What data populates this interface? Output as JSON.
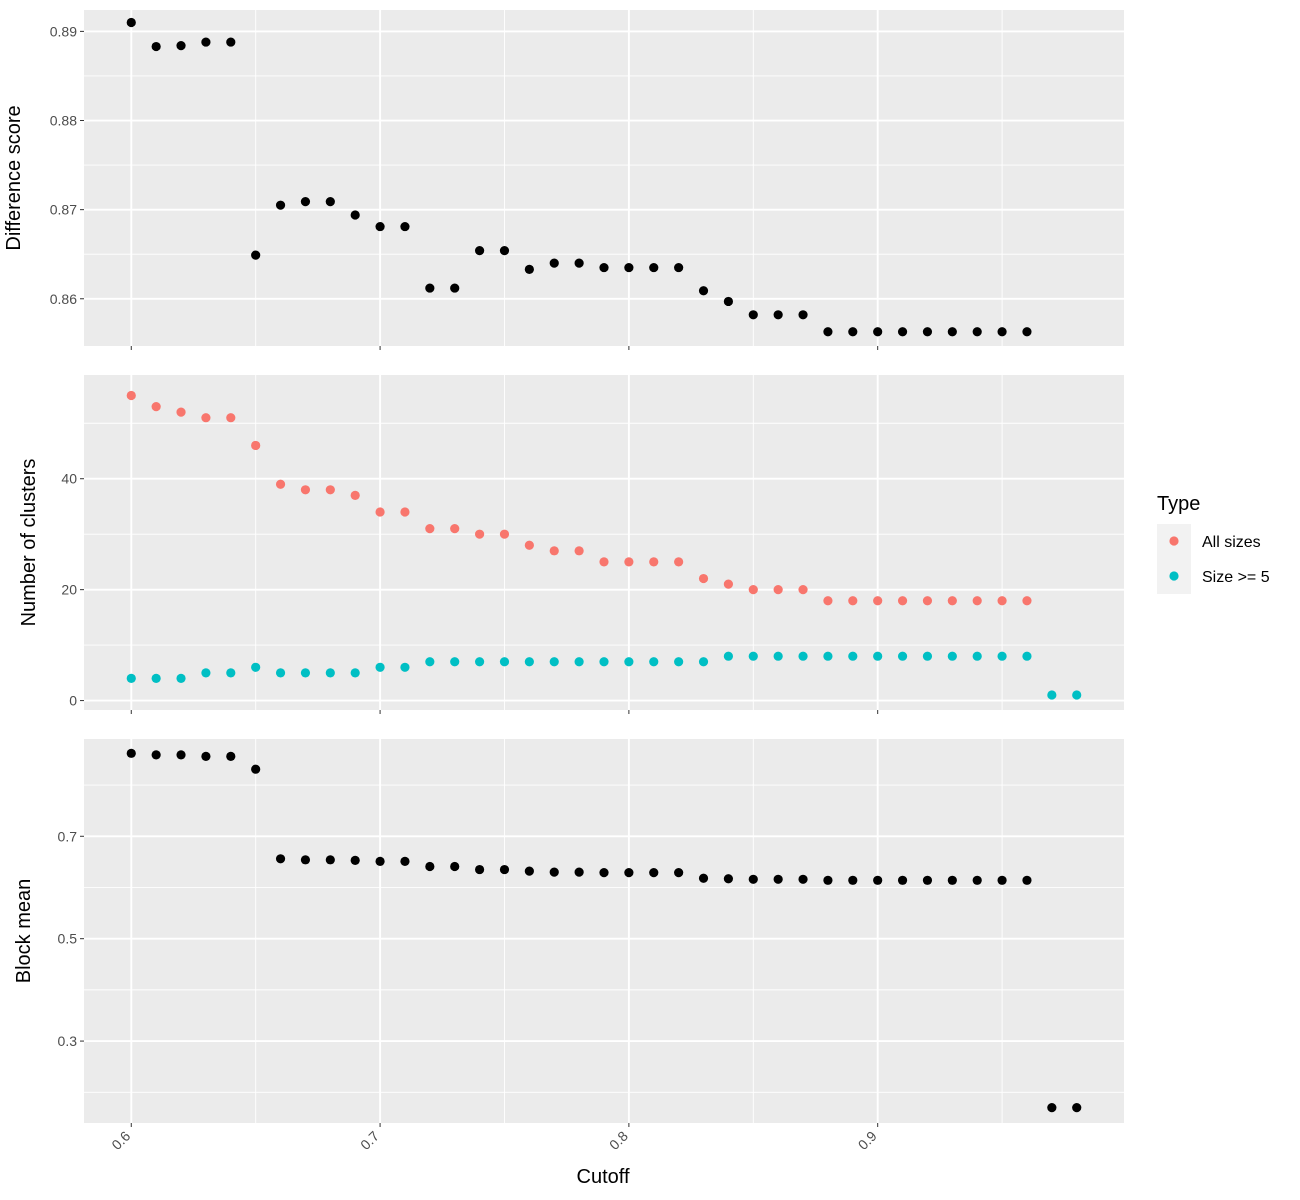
{
  "colors": {
    "panel_background": "#EBEBEB",
    "grid": "#FFFFFF",
    "tick": "#333333",
    "all_sizes": "#F8766D",
    "size_ge_5": "#00BFC4",
    "points": "#000000"
  },
  "xaxis": {
    "label": "Cutoff",
    "range": [
      0.581,
      0.999
    ],
    "ticks": [
      0.6,
      0.7,
      0.8,
      0.9
    ],
    "tick_labels": [
      "0.6",
      "0.7",
      "0.8",
      "0.9"
    ],
    "minor": [
      0.65,
      0.75,
      0.85,
      0.95
    ],
    "tick_label_rotation": "45 degrees"
  },
  "legend": {
    "title": "Type",
    "position": "right",
    "items": [
      {
        "label": "All sizes",
        "color": "#F8766D"
      },
      {
        "label": "Size >= 5",
        "color": "#00BFC4"
      }
    ]
  },
  "chart_data": [
    {
      "type": "scatter",
      "ylabel": "Difference score",
      "ylim": [
        0.8547,
        0.8924
      ],
      "yticks": [
        0.86,
        0.87,
        0.88,
        0.89
      ],
      "ytick_labels": [
        "0.86",
        "0.87",
        "0.88",
        "0.89"
      ],
      "yminor": [
        0.865,
        0.875,
        0.885
      ],
      "grid": true,
      "series": [
        {
          "color": "#000000",
          "x": [
            0.6,
            0.61,
            0.62,
            0.63,
            0.64,
            0.65,
            0.66,
            0.67,
            0.68,
            0.69,
            0.7,
            0.71,
            0.72,
            0.73,
            0.74,
            0.75,
            0.76,
            0.77,
            0.78,
            0.79,
            0.8,
            0.81,
            0.82,
            0.83,
            0.84,
            0.85,
            0.86,
            0.87,
            0.88,
            0.89,
            0.9,
            0.91,
            0.92,
            0.93,
            0.94,
            0.95,
            0.96
          ],
          "y": [
            0.891,
            0.8883,
            0.8884,
            0.8888,
            0.8888,
            0.8649,
            0.8705,
            0.8709,
            0.8709,
            0.8694,
            0.8681,
            0.8681,
            0.8612,
            0.8612,
            0.8654,
            0.8654,
            0.8633,
            0.864,
            0.864,
            0.8635,
            0.8635,
            0.8635,
            0.8635,
            0.8609,
            0.8597,
            0.8582,
            0.8582,
            0.8582,
            0.8563,
            0.8563,
            0.8563,
            0.8563,
            0.8563,
            0.8563,
            0.8563,
            0.8563,
            0.8563
          ]
        }
      ]
    },
    {
      "type": "scatter",
      "ylabel": "Number of clusters",
      "ylim": [
        -1.7,
        58.7
      ],
      "yticks": [
        0,
        20,
        40
      ],
      "ytick_labels": [
        "0",
        "20",
        "40"
      ],
      "yminor": [
        10,
        30,
        50
      ],
      "grid": true,
      "series": [
        {
          "name": "All sizes",
          "color": "#F8766D",
          "x": [
            0.6,
            0.61,
            0.62,
            0.63,
            0.64,
            0.65,
            0.66,
            0.67,
            0.68,
            0.69,
            0.7,
            0.71,
            0.72,
            0.73,
            0.74,
            0.75,
            0.76,
            0.77,
            0.78,
            0.79,
            0.8,
            0.81,
            0.82,
            0.83,
            0.84,
            0.85,
            0.86,
            0.87,
            0.88,
            0.89,
            0.9,
            0.91,
            0.92,
            0.93,
            0.94,
            0.95,
            0.96
          ],
          "y": [
            55,
            53,
            52,
            51,
            51,
            46,
            39,
            38,
            38,
            37,
            34,
            34,
            31,
            31,
            30,
            30,
            28,
            27,
            27,
            25,
            25,
            25,
            25,
            22,
            21,
            20,
            20,
            20,
            18,
            18,
            18,
            18,
            18,
            18,
            18,
            18,
            18
          ]
        },
        {
          "name": "Size >= 5",
          "color": "#00BFC4",
          "x": [
            0.6,
            0.61,
            0.62,
            0.63,
            0.64,
            0.65,
            0.66,
            0.67,
            0.68,
            0.69,
            0.7,
            0.71,
            0.72,
            0.73,
            0.74,
            0.75,
            0.76,
            0.77,
            0.78,
            0.79,
            0.8,
            0.81,
            0.82,
            0.83,
            0.84,
            0.85,
            0.86,
            0.87,
            0.88,
            0.89,
            0.9,
            0.91,
            0.92,
            0.93,
            0.94,
            0.95,
            0.96,
            0.97,
            0.98
          ],
          "y": [
            4,
            4,
            4,
            5,
            5,
            6,
            5,
            5,
            5,
            5,
            6,
            6,
            7,
            7,
            7,
            7,
            7,
            7,
            7,
            7,
            7,
            7,
            7,
            7,
            8,
            8,
            8,
            8,
            8,
            8,
            8,
            8,
            8,
            8,
            8,
            8,
            8,
            1,
            1
          ]
        }
      ]
    },
    {
      "type": "scatter",
      "ylabel": "Block mean",
      "ylim": [
        0.14,
        0.89
      ],
      "yticks": [
        0.3,
        0.5,
        0.7
      ],
      "ytick_labels": [
        "0.3",
        "0.5",
        "0.7"
      ],
      "yminor": [
        0.2,
        0.4,
        0.6,
        0.8
      ],
      "grid": true,
      "series": [
        {
          "color": "#000000",
          "x": [
            0.6,
            0.61,
            0.62,
            0.63,
            0.64,
            0.65,
            0.66,
            0.67,
            0.68,
            0.69,
            0.7,
            0.71,
            0.72,
            0.73,
            0.74,
            0.75,
            0.76,
            0.77,
            0.78,
            0.79,
            0.8,
            0.81,
            0.82,
            0.83,
            0.84,
            0.85,
            0.86,
            0.87,
            0.88,
            0.89,
            0.9,
            0.91,
            0.92,
            0.93,
            0.94,
            0.95,
            0.96,
            0.97,
            0.98
          ],
          "y": [
            0.862,
            0.859,
            0.859,
            0.856,
            0.856,
            0.831,
            0.656,
            0.654,
            0.654,
            0.653,
            0.651,
            0.651,
            0.641,
            0.641,
            0.635,
            0.635,
            0.632,
            0.63,
            0.63,
            0.629,
            0.629,
            0.629,
            0.629,
            0.618,
            0.617,
            0.616,
            0.616,
            0.616,
            0.614,
            0.614,
            0.614,
            0.614,
            0.614,
            0.614,
            0.614,
            0.614,
            0.614,
            0.17,
            0.17
          ]
        }
      ]
    }
  ]
}
